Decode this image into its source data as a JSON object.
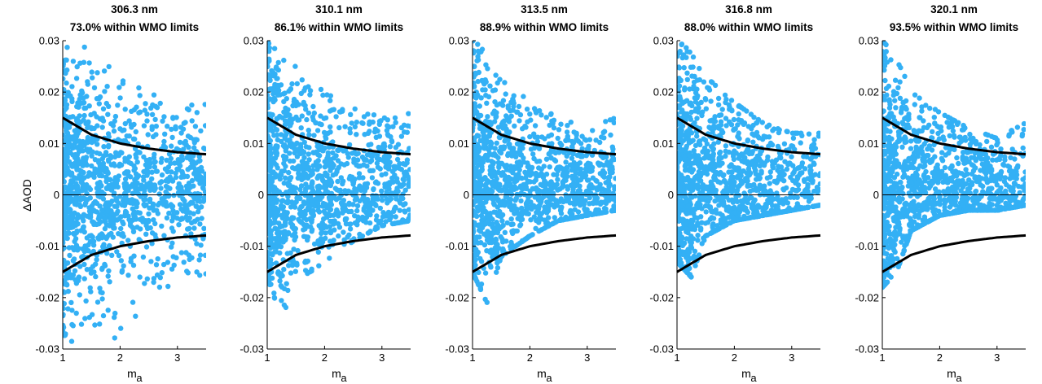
{
  "figure": {
    "ylabel": "ΔAOD",
    "xlabel_main": "m",
    "xlabel_sub": "a"
  },
  "style": {
    "point_color": "#33b0f5",
    "line_color": "#000000"
  },
  "chart_data": [
    {
      "type": "scatter",
      "title_line1": "306.3 nm",
      "title_line2": "73.0% within WMO limits",
      "within_pct": 73.0,
      "xlim": [
        1,
        3.5
      ],
      "ylim": [
        -0.03,
        0.03
      ],
      "xticks": [
        "1",
        "2",
        "3"
      ],
      "yticks": [
        "0.03",
        "0.02",
        "0.01",
        "0",
        "-0.01",
        "-0.02",
        "-0.03"
      ],
      "limit_curve": {
        "x": [
          1.0,
          1.5,
          2.0,
          2.5,
          3.0,
          3.5
        ],
        "upper": [
          0.015,
          0.0117,
          0.01,
          0.009,
          0.0083,
          0.0079
        ],
        "lower": [
          -0.015,
          -0.0117,
          -0.01,
          -0.009,
          -0.0083,
          -0.0079
        ]
      },
      "scatter_profile": {
        "x": [
          1.0,
          1.25,
          1.5,
          2.0,
          2.5,
          3.0,
          3.5
        ],
        "y_max": [
          0.03,
          0.03,
          0.029,
          0.023,
          0.02,
          0.017,
          0.018
        ],
        "y_min": [
          -0.029,
          -0.029,
          -0.028,
          -0.028,
          -0.02,
          -0.017,
          -0.017
        ]
      }
    },
    {
      "type": "scatter",
      "title_line1": "310.1 nm",
      "title_line2": "86.1% within WMO limits",
      "within_pct": 86.1,
      "xlim": [
        1,
        3.5
      ],
      "ylim": [
        -0.03,
        0.03
      ],
      "xticks": [
        "1",
        "2",
        "3"
      ],
      "yticks": [
        "0.03",
        "0.02",
        "0.01",
        "0",
        "-0.01",
        "-0.02",
        "-0.03"
      ],
      "limit_curve": {
        "x": [
          1.0,
          1.5,
          2.0,
          2.5,
          3.0,
          3.5
        ],
        "upper": [
          0.015,
          0.0117,
          0.01,
          0.009,
          0.0083,
          0.0079
        ],
        "lower": [
          -0.015,
          -0.0117,
          -0.01,
          -0.009,
          -0.0083,
          -0.0079
        ]
      },
      "scatter_profile": {
        "x": [
          1.0,
          1.25,
          1.5,
          2.0,
          2.5,
          3.0,
          3.5
        ],
        "y_max": [
          0.03,
          0.029,
          0.025,
          0.02,
          0.017,
          0.015,
          0.016
        ],
        "y_min": [
          -0.016,
          -0.024,
          -0.017,
          -0.013,
          -0.009,
          -0.006,
          -0.005
        ]
      }
    },
    {
      "type": "scatter",
      "title_line1": "313.5 nm",
      "title_line2": "88.9% within WMO limits",
      "within_pct": 88.9,
      "xlim": [
        1,
        3.5
      ],
      "ylim": [
        -0.03,
        0.03
      ],
      "xticks": [
        "1",
        "2",
        "3"
      ],
      "yticks": [
        "0.03",
        "0.02",
        "0.01",
        "0",
        "-0.01",
        "-0.02",
        "-0.03"
      ],
      "limit_curve": {
        "x": [
          1.0,
          1.5,
          2.0,
          2.5,
          3.0,
          3.5
        ],
        "upper": [
          0.015,
          0.0117,
          0.01,
          0.009,
          0.0083,
          0.0079
        ],
        "lower": [
          -0.015,
          -0.0117,
          -0.01,
          -0.009,
          -0.0083,
          -0.0079
        ]
      },
      "scatter_profile": {
        "x": [
          1.0,
          1.25,
          1.5,
          2.0,
          2.5,
          3.0,
          3.5
        ],
        "y_max": [
          0.03,
          0.028,
          0.023,
          0.018,
          0.015,
          0.013,
          0.015
        ],
        "y_min": [
          -0.015,
          -0.021,
          -0.012,
          -0.008,
          -0.005,
          -0.004,
          -0.003
        ]
      }
    },
    {
      "type": "scatter",
      "title_line1": "316.8 nm",
      "title_line2": "88.0% within WMO limits",
      "within_pct": 88.0,
      "xlim": [
        1,
        3.5
      ],
      "ylim": [
        -0.03,
        0.03
      ],
      "xticks": [
        "1",
        "2",
        "3"
      ],
      "yticks": [
        "0.03",
        "0.02",
        "0.01",
        "0",
        "-0.01",
        "-0.02",
        "-0.03"
      ],
      "limit_curve": {
        "x": [
          1.0,
          1.5,
          2.0,
          2.5,
          3.0,
          3.5
        ],
        "upper": [
          0.015,
          0.0117,
          0.01,
          0.009,
          0.0083,
          0.0079
        ],
        "lower": [
          -0.015,
          -0.0117,
          -0.01,
          -0.009,
          -0.0083,
          -0.0079
        ]
      },
      "scatter_profile": {
        "x": [
          1.0,
          1.25,
          1.5,
          2.0,
          2.5,
          3.0,
          3.5
        ],
        "y_max": [
          0.03,
          0.028,
          0.023,
          0.018,
          0.014,
          0.012,
          0.012
        ],
        "y_min": [
          -0.013,
          -0.016,
          -0.008,
          -0.005,
          -0.004,
          -0.003,
          -0.002
        ]
      }
    },
    {
      "type": "scatter",
      "title_line1": "320.1 nm",
      "title_line2": "93.5% within WMO limits",
      "within_pct": 93.5,
      "xlim": [
        1,
        3.5
      ],
      "ylim": [
        -0.03,
        0.03
      ],
      "xticks": [
        "1",
        "2",
        "3"
      ],
      "yticks": [
        "0.03",
        "0.02",
        "0.01",
        "0",
        "-0.01",
        "-0.02",
        "-0.03"
      ],
      "limit_curve": {
        "x": [
          1.0,
          1.5,
          2.0,
          2.5,
          3.0,
          3.5
        ],
        "upper": [
          0.015,
          0.0117,
          0.01,
          0.009,
          0.0083,
          0.0079
        ],
        "lower": [
          -0.015,
          -0.0117,
          -0.01,
          -0.009,
          -0.0083,
          -0.0079
        ]
      },
      "scatter_profile": {
        "x": [
          1.0,
          1.25,
          1.5,
          2.0,
          2.5,
          3.0,
          3.5
        ],
        "y_max": [
          0.03,
          0.027,
          0.02,
          0.016,
          0.013,
          0.011,
          0.014
        ],
        "y_min": [
          -0.018,
          -0.015,
          -0.007,
          -0.004,
          -0.003,
          -0.003,
          -0.002
        ]
      }
    }
  ]
}
